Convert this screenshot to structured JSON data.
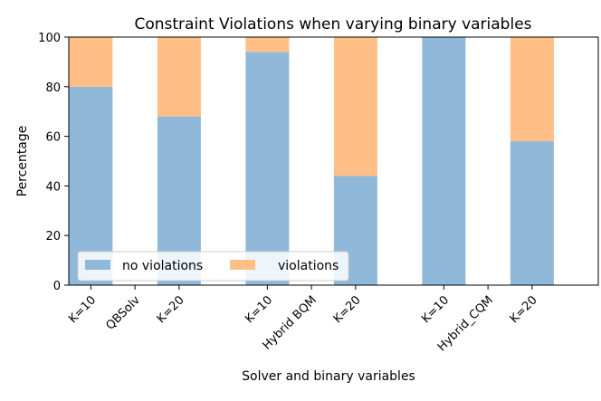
{
  "chart_data": {
    "type": "bar",
    "stacked": true,
    "title": "Constraint Violations when varying binary variables",
    "xlabel": "Solver and binary variables",
    "ylabel": "Percentage",
    "ylim": [
      0,
      100
    ],
    "yticks": [
      0,
      20,
      40,
      60,
      80,
      100
    ],
    "grid": false,
    "legend_position": "lower-left",
    "categories": [
      "K=10",
      "K=20",
      "K=10",
      "K=20",
      "K=10",
      "K=20"
    ],
    "groups": [
      "QBSolv",
      "Hybrid BQM",
      "Hybrid_CQM"
    ],
    "series": [
      {
        "name": "no violations",
        "color": "#8fb8d9",
        "values": [
          80,
          68,
          94,
          44,
          100,
          58
        ]
      },
      {
        "name": "violations",
        "color": "#ffbf87",
        "values": [
          20,
          32,
          6,
          56,
          0,
          42
        ]
      }
    ]
  }
}
